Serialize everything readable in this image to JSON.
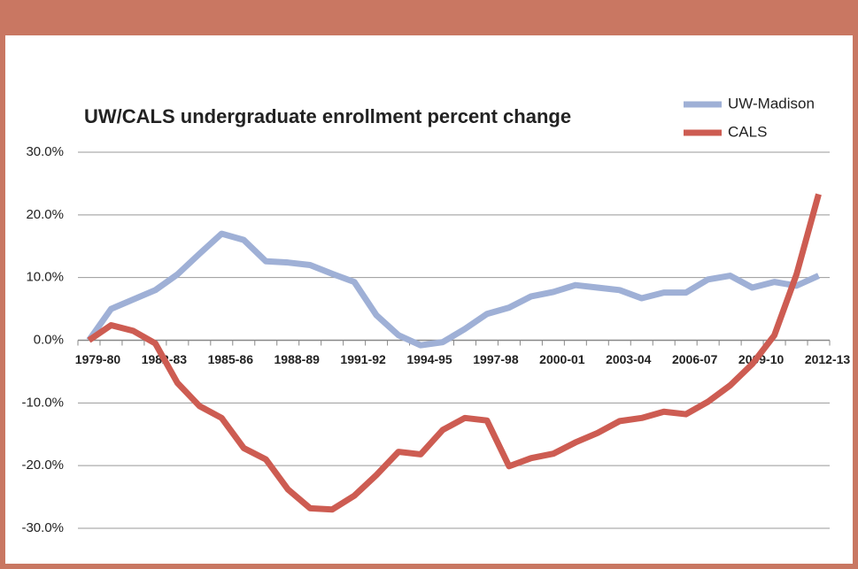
{
  "chart_data": {
    "type": "line",
    "title": "UW/CALS undergraduate enrollment percent change",
    "categories": [
      "1979-80",
      null,
      null,
      "1982-83",
      null,
      null,
      "1985-86",
      null,
      null,
      "1988-89",
      null,
      null,
      "1991-92",
      null,
      null,
      "1994-95",
      null,
      null,
      "1997-98",
      null,
      null,
      "2000-01",
      null,
      null,
      "2003-04",
      null,
      null,
      "2006-07",
      null,
      null,
      "2009-10",
      null,
      null,
      "2012-13"
    ],
    "series": [
      {
        "name": "UW-Madison",
        "color": "#9fb0d6",
        "values": [
          0,
          5,
          6.5,
          8,
          10.5,
          13.8,
          17,
          16,
          12.6,
          12.4,
          12,
          10.6,
          9.3,
          4,
          0.8,
          -0.8,
          -0.3,
          1.8,
          4.2,
          5.2,
          7,
          7.7,
          8.8,
          8.4,
          8,
          6.7,
          7.6,
          7.6,
          9.7,
          10.3,
          8.4,
          9.3,
          8.7,
          10.3
        ]
      },
      {
        "name": "CALS",
        "color": "#cd5c52",
        "values": [
          0,
          2.4,
          1.5,
          -0.5,
          -6.8,
          -10.5,
          -12.4,
          -17.2,
          -19,
          -23.8,
          -26.8,
          -27,
          -24.8,
          -21.5,
          -17.8,
          -18.2,
          -14.3,
          -12.4,
          -12.8,
          -20.1,
          -18.8,
          -18.1,
          -16.3,
          -14.8,
          -12.9,
          -12.4,
          -11.4,
          -11.8,
          -9.8,
          -7.2,
          -3.8,
          0.8,
          10.5,
          23.3
        ]
      }
    ],
    "ylim": [
      -30,
      30
    ],
    "yticks": [
      {
        "value": -30,
        "label": "-30.0%"
      },
      {
        "value": -20,
        "label": "-20.0%"
      },
      {
        "value": -10,
        "label": "-10.0%"
      },
      {
        "value": 0,
        "label": "0.0%"
      },
      {
        "value": 10,
        "label": "10.0%"
      },
      {
        "value": 20,
        "label": "20.0%"
      },
      {
        "value": 30,
        "label": "30.0%"
      }
    ],
    "grid": true,
    "legend": "top-right"
  }
}
